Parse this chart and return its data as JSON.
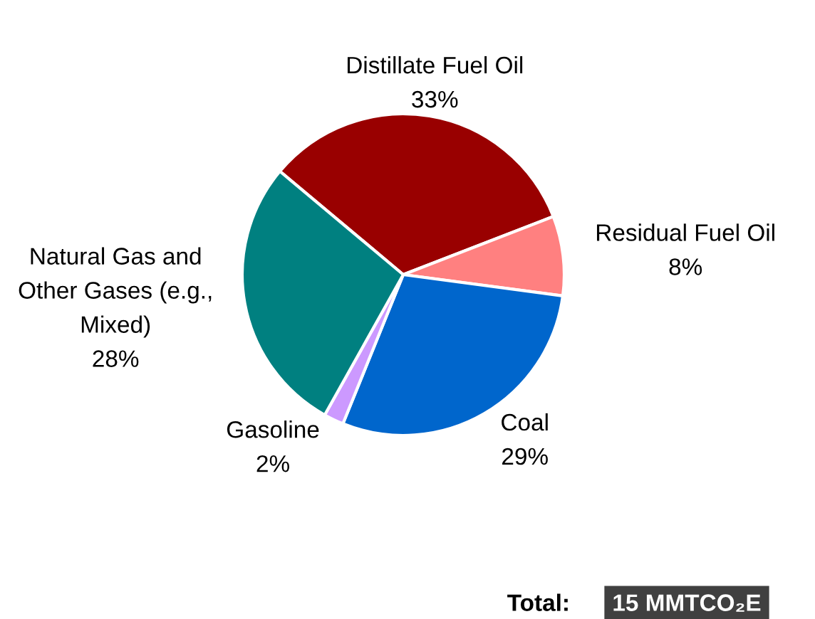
{
  "chart_data": {
    "type": "pie",
    "categories": [
      "Distillate Fuel Oil",
      "Residual Fuel Oil",
      "Coal",
      "Gasoline",
      "Natural Gas and\nOther Gases (e.g.,\nMixed)"
    ],
    "values": [
      33,
      8,
      29,
      2,
      28
    ],
    "value_labels": [
      "33%",
      "8%",
      "29%",
      "2%",
      "28%"
    ],
    "colors": [
      "#990000",
      "#ff8080",
      "#0066cc",
      "#cc99ff",
      "#008080"
    ],
    "annotations": [
      "Total:",
      "15 MMTCO₂E"
    ]
  }
}
